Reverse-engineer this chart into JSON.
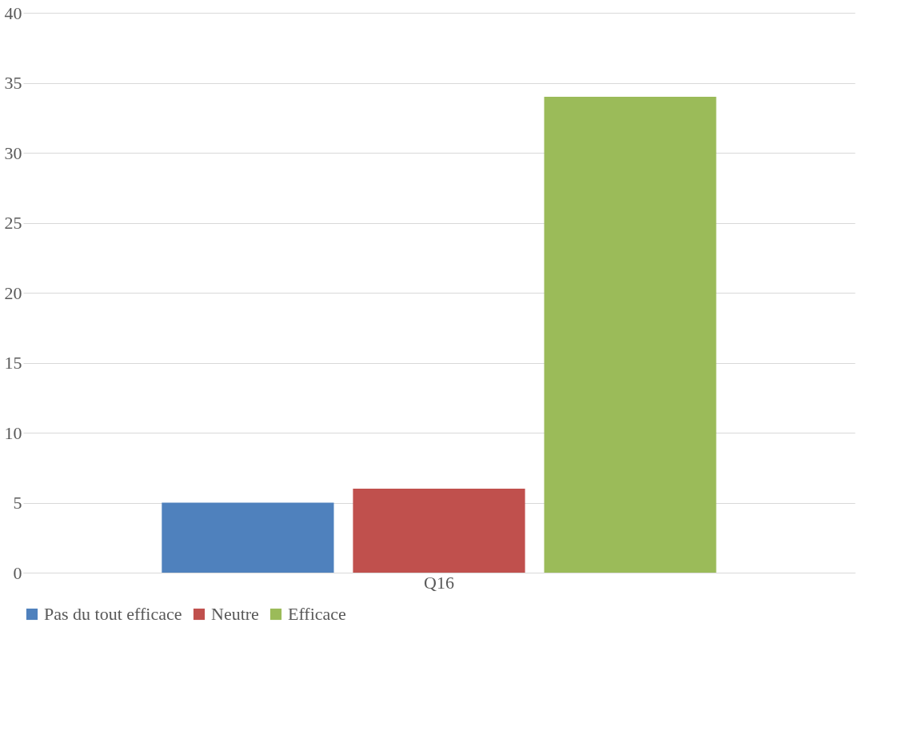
{
  "chart_data": {
    "type": "bar",
    "categories": [
      "Q16"
    ],
    "series": [
      {
        "name": "Pas du tout efficace",
        "color": "#4f81bd",
        "values": [
          5
        ]
      },
      {
        "name": "Neutre",
        "color": "#c0504d",
        "values": [
          6
        ]
      },
      {
        "name": "Efficace",
        "color": "#9bbb59",
        "values": [
          34
        ]
      }
    ],
    "ylim": [
      0,
      40
    ],
    "yticks": [
      0,
      5,
      10,
      15,
      20,
      25,
      30,
      35,
      40
    ],
    "grid": "y",
    "legend": "bottom"
  }
}
